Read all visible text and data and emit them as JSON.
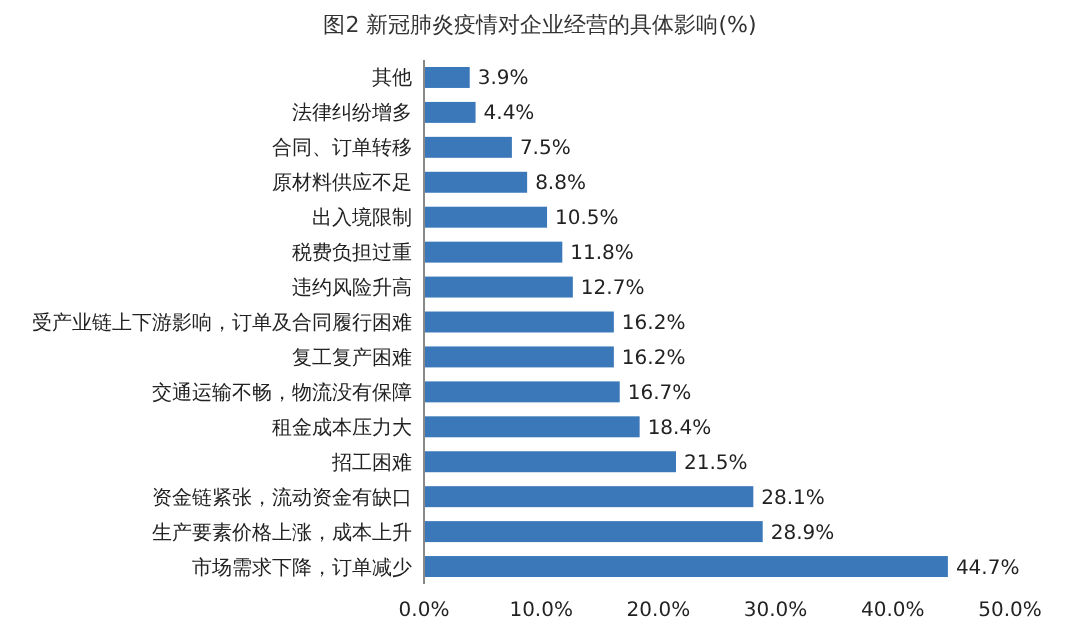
{
  "chart_data": {
    "type": "bar",
    "orientation": "horizontal",
    "title": "图2 新冠肺炎疫情对企业经营的具体影响(%)",
    "categories": [
      "其他",
      "法律纠纷增多",
      "合同、订单转移",
      "原材料供应不足",
      "出入境限制",
      "税费负担过重",
      "违约风险升高",
      "受产业链上下游影响，订单及合同履行困难",
      "复工复产困难",
      "交通运输不畅，物流没有保障",
      "租金成本压力大",
      "招工困难",
      "资金链紧张，流动资金有缺口",
      "生产要素价格上涨，成本上升",
      "市场需求下降，订单减少"
    ],
    "values": [
      3.9,
      4.4,
      7.5,
      8.8,
      10.5,
      11.8,
      12.7,
      16.2,
      16.2,
      16.7,
      18.4,
      21.5,
      28.1,
      28.9,
      44.7
    ],
    "value_labels": [
      "3.9%",
      "4.4%",
      "7.5%",
      "8.8%",
      "10.5%",
      "11.8%",
      "12.7%",
      "16.2%",
      "16.2%",
      "16.7%",
      "18.4%",
      "21.5%",
      "28.1%",
      "28.9%",
      "44.7%"
    ],
    "color": "#3b78b9",
    "xlim": [
      0,
      50
    ],
    "xticks": [
      {
        "value": 0,
        "label": "0.0%"
      },
      {
        "value": 10,
        "label": "10.0%"
      },
      {
        "value": 20,
        "label": "20.0%"
      },
      {
        "value": 30,
        "label": "30.0%"
      },
      {
        "value": 40,
        "label": "40.0%"
      },
      {
        "value": 50,
        "label": "50.0%"
      }
    ],
    "grid": false
  }
}
